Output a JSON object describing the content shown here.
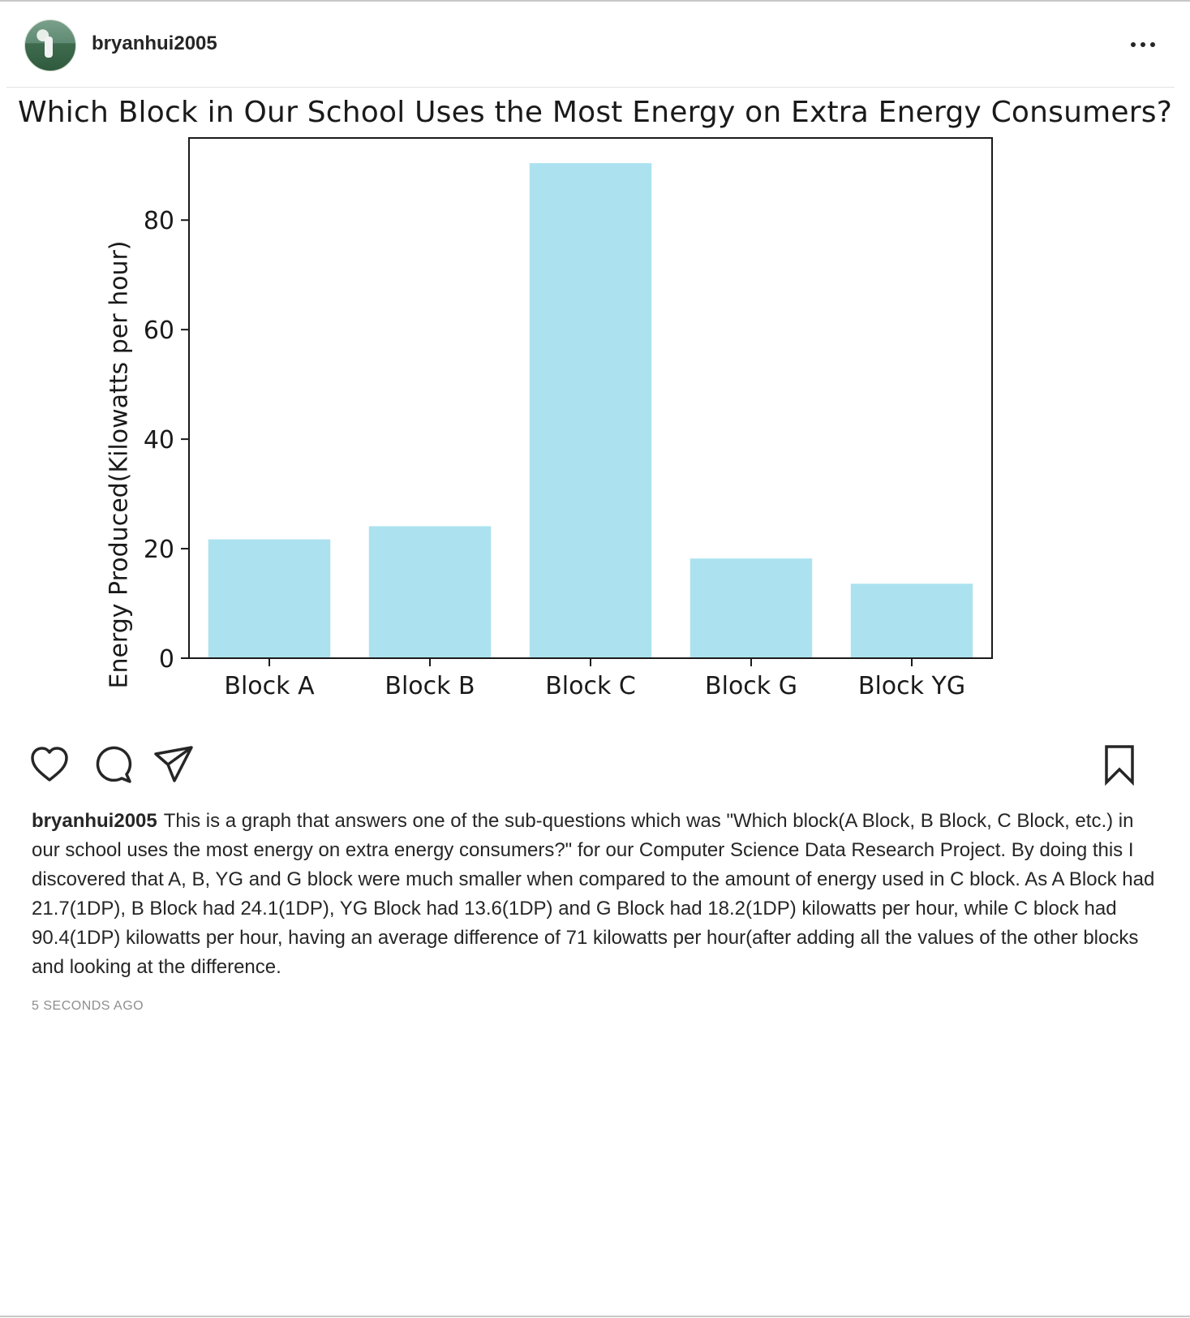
{
  "post": {
    "username": "bryanhui2005",
    "avatar_icon": "profile-photo",
    "more_icon": "more-options-icon"
  },
  "chart_data": {
    "type": "bar",
    "title": "Which Block in Our School Uses the Most Energy on Extra Energy Consumers?",
    "xlabel": "",
    "ylabel": "Energy Produced(Kilowatts per hour)",
    "categories": [
      "Block A",
      "Block B",
      "Block C",
      "Block G",
      "Block YG"
    ],
    "values": [
      21.7,
      24.1,
      90.4,
      18.2,
      13.6
    ],
    "yticks": [
      "0",
      "20",
      "40",
      "60",
      "80"
    ],
    "ylim": [
      0,
      95
    ],
    "color": "#ace2ef",
    "grid": false,
    "legend": "none"
  },
  "actions": {
    "like_icon": "heart-icon",
    "comment_icon": "comment-icon",
    "share_icon": "send-icon",
    "save_icon": "bookmark-icon"
  },
  "caption": {
    "username": "bryanhui2005",
    "text": "This is a graph that answers one of the sub-questions which was \"Which block(A Block, B Block, C Block, etc.) in our school uses the most energy on extra energy consumers?\" for our Computer Science Data Research Project. By doing this I discovered that A, B, YG and G block were much smaller when compared to the amount of energy used in C block. As A Block had 21.7(1DP), B Block had 24.1(1DP), YG Block had 13.6(1DP) and G Block had 18.2(1DP) kilowatts per hour, while C block had 90.4(1DP) kilowatts per hour, having an average difference of 71 kilowatts per hour(after adding all the values of the other blocks and looking at the difference."
  },
  "timestamp": "5 SECONDS AGO"
}
